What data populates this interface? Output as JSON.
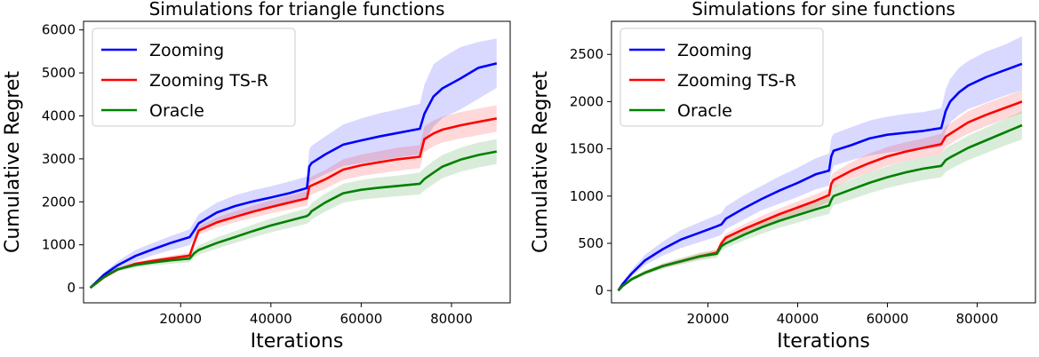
{
  "chart_data": [
    {
      "type": "line",
      "title": "Simulations for triangle functions",
      "xlabel": "Iterations",
      "ylabel": "Cumulative Regret",
      "xlim": [
        -1500,
        93000
      ],
      "ylim": [
        -350,
        6200
      ],
      "xticks": [
        20000,
        40000,
        60000,
        80000
      ],
      "yticks": [
        0,
        1000,
        2000,
        3000,
        4000,
        5000,
        6000
      ],
      "grid": false,
      "legend_position": "upper left",
      "x": [
        0,
        3000,
        6000,
        10000,
        14000,
        18000,
        22000,
        23000,
        24000,
        28000,
        32000,
        36000,
        40000,
        44000,
        48000,
        48500,
        49000,
        52000,
        56000,
        60000,
        64000,
        68000,
        73000,
        74000,
        76000,
        78000,
        82000,
        86000,
        90000
      ],
      "series": [
        {
          "name": "Zooming",
          "color": "#0000ff",
          "values": [
            0,
            300,
            520,
            740,
            900,
            1050,
            1180,
            1330,
            1500,
            1750,
            1900,
            2010,
            2100,
            2200,
            2320,
            2820,
            2900,
            3100,
            3330,
            3430,
            3520,
            3600,
            3700,
            4050,
            4450,
            4640,
            4870,
            5120,
            5220
          ],
          "lower": [
            0,
            250,
            430,
            610,
            760,
            880,
            990,
            1140,
            1300,
            1540,
            1690,
            1790,
            1870,
            1960,
            2060,
            2420,
            2490,
            2640,
            2830,
            2900,
            2960,
            3030,
            3100,
            3400,
            3750,
            3950,
            4150,
            4400,
            4650
          ],
          "upper": [
            0,
            350,
            610,
            880,
            1050,
            1210,
            1360,
            1530,
            1710,
            1980,
            2150,
            2270,
            2360,
            2470,
            2590,
            3220,
            3300,
            3520,
            3800,
            3940,
            4060,
            4150,
            4280,
            4720,
            5200,
            5350,
            5600,
            5720,
            5800
          ]
        },
        {
          "name": "Zooming TS-R",
          "color": "#ff0000",
          "values": [
            0,
            240,
            420,
            560,
            630,
            690,
            750,
            1050,
            1330,
            1520,
            1650,
            1770,
            1880,
            1980,
            2080,
            2350,
            2380,
            2520,
            2750,
            2850,
            2920,
            2990,
            3050,
            3460,
            3590,
            3680,
            3780,
            3860,
            3940
          ],
          "lower": [
            0,
            220,
            390,
            520,
            580,
            630,
            680,
            970,
            1230,
            1400,
            1520,
            1630,
            1730,
            1820,
            1910,
            2140,
            2170,
            2300,
            2510,
            2600,
            2660,
            2720,
            2780,
            3160,
            3290,
            3380,
            3470,
            3550,
            3630
          ],
          "upper": [
            0,
            260,
            450,
            600,
            680,
            750,
            820,
            1130,
            1430,
            1640,
            1780,
            1910,
            2030,
            2140,
            2250,
            2560,
            2590,
            2740,
            2990,
            3100,
            3180,
            3260,
            3320,
            3760,
            3890,
            3980,
            4090,
            4170,
            4250
          ]
        },
        {
          "name": "Oracle",
          "color": "#008000",
          "values": [
            0,
            250,
            430,
            530,
            590,
            640,
            680,
            800,
            880,
            1040,
            1180,
            1320,
            1450,
            1560,
            1670,
            1710,
            1780,
            1980,
            2200,
            2280,
            2330,
            2370,
            2420,
            2530,
            2680,
            2820,
            2980,
            3090,
            3170
          ],
          "lower": [
            0,
            220,
            390,
            470,
            520,
            560,
            590,
            700,
            770,
            910,
            1040,
            1170,
            1290,
            1390,
            1490,
            1530,
            1590,
            1770,
            1980,
            2050,
            2090,
            2130,
            2170,
            2270,
            2410,
            2550,
            2700,
            2800,
            2880
          ],
          "upper": [
            0,
            280,
            470,
            580,
            650,
            710,
            760,
            900,
            990,
            1170,
            1320,
            1470,
            1610,
            1730,
            1850,
            1890,
            1970,
            2190,
            2420,
            2510,
            2570,
            2610,
            2680,
            2790,
            2950,
            3090,
            3260,
            3380,
            3460
          ]
        }
      ]
    },
    {
      "type": "line",
      "title": "Simulations for sine functions",
      "xlabel": "Iterations",
      "ylabel": "Cumulative Regret",
      "xlim": [
        -1500,
        93000
      ],
      "ylim": [
        -130,
        2850
      ],
      "xticks": [
        20000,
        40000,
        60000,
        80000
      ],
      "yticks": [
        0,
        500,
        1000,
        1500,
        2000,
        2500
      ],
      "grid": false,
      "legend_position": "upper left",
      "x": [
        0,
        1000,
        3000,
        6000,
        10000,
        14000,
        18000,
        22000,
        23000,
        24000,
        28000,
        32000,
        36000,
        40000,
        44000,
        47000,
        47500,
        48000,
        52000,
        56000,
        60000,
        64000,
        68000,
        72000,
        73000,
        74000,
        76000,
        78000,
        82000,
        86000,
        90000
      ],
      "series": [
        {
          "name": "Zooming",
          "color": "#0000ff",
          "values": [
            0,
            70,
            180,
            320,
            440,
            540,
            610,
            680,
            700,
            760,
            870,
            970,
            1060,
            1140,
            1230,
            1270,
            1420,
            1480,
            1540,
            1610,
            1650,
            1670,
            1690,
            1720,
            1900,
            2000,
            2100,
            2170,
            2260,
            2330,
            2400
          ],
          "lower": [
            0,
            50,
            150,
            270,
            370,
            450,
            510,
            570,
            590,
            650,
            750,
            850,
            920,
            990,
            1070,
            1110,
            1250,
            1320,
            1380,
            1430,
            1460,
            1480,
            1500,
            1520,
            1690,
            1780,
            1860,
            1920,
            1990,
            2060,
            2120
          ],
          "upper": [
            0,
            90,
            220,
            380,
            520,
            640,
            720,
            800,
            820,
            890,
            1010,
            1110,
            1210,
            1300,
            1400,
            1450,
            1610,
            1660,
            1730,
            1800,
            1840,
            1870,
            1890,
            1930,
            2130,
            2240,
            2360,
            2430,
            2530,
            2600,
            2690
          ]
        },
        {
          "name": "Zooming TS-R",
          "color": "#ff0000",
          "values": [
            0,
            50,
            120,
            190,
            260,
            310,
            360,
            400,
            500,
            560,
            650,
            730,
            810,
            880,
            950,
            1010,
            1130,
            1170,
            1270,
            1350,
            1420,
            1470,
            1510,
            1550,
            1630,
            1660,
            1720,
            1780,
            1860,
            1930,
            2000
          ],
          "lower": [
            0,
            45,
            110,
            175,
            240,
            285,
            330,
            370,
            460,
            520,
            600,
            680,
            750,
            815,
            880,
            940,
            1050,
            1090,
            1180,
            1250,
            1320,
            1370,
            1410,
            1440,
            1520,
            1550,
            1610,
            1660,
            1740,
            1810,
            1880
          ],
          "upper": [
            0,
            55,
            130,
            205,
            280,
            335,
            390,
            430,
            540,
            600,
            700,
            790,
            870,
            945,
            1020,
            1080,
            1210,
            1250,
            1360,
            1450,
            1520,
            1570,
            1610,
            1660,
            1740,
            1770,
            1830,
            1900,
            1980,
            2050,
            2120
          ]
        },
        {
          "name": "Oracle",
          "color": "#008000",
          "values": [
            0,
            50,
            120,
            190,
            260,
            310,
            360,
            390,
            470,
            500,
            590,
            670,
            740,
            800,
            860,
            900,
            960,
            1000,
            1070,
            1140,
            1200,
            1250,
            1290,
            1320,
            1380,
            1410,
            1460,
            1510,
            1590,
            1670,
            1750
          ],
          "lower": [
            0,
            40,
            100,
            165,
            230,
            275,
            320,
            345,
            420,
            450,
            530,
            600,
            665,
            720,
            775,
            810,
            865,
            900,
            965,
            1030,
            1085,
            1130,
            1170,
            1200,
            1255,
            1285,
            1335,
            1380,
            1455,
            1530,
            1600
          ],
          "upper": [
            0,
            60,
            140,
            215,
            290,
            345,
            400,
            435,
            520,
            550,
            650,
            740,
            815,
            880,
            945,
            990,
            1055,
            1100,
            1175,
            1250,
            1315,
            1370,
            1410,
            1440,
            1505,
            1535,
            1585,
            1640,
            1725,
            1810,
            1900
          ]
        }
      ]
    }
  ]
}
